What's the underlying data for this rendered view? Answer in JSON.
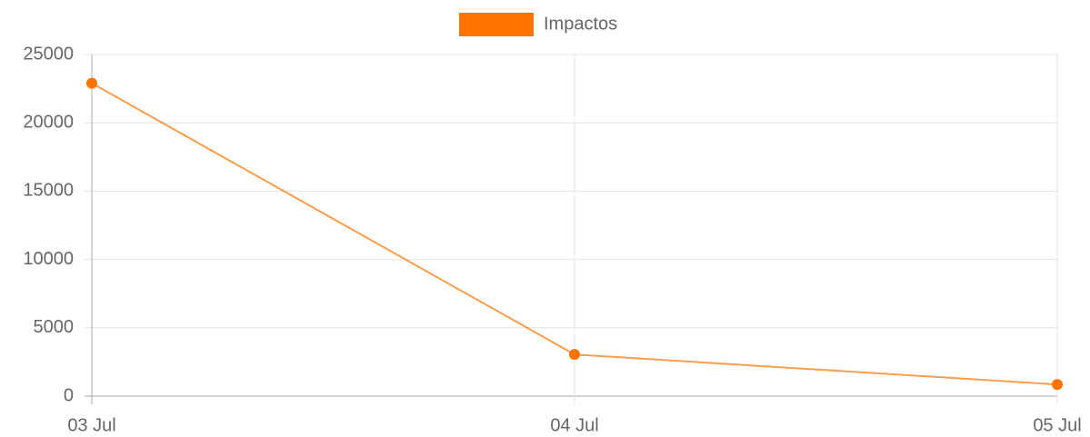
{
  "chart_data": {
    "type": "line",
    "categories": [
      "03 Jul",
      "04 Jul",
      "05 Jul"
    ],
    "series": [
      {
        "name": "Impactos",
        "color": "#ff7300",
        "values": [
          22900,
          3050,
          850
        ]
      }
    ],
    "ylim": [
      0,
      25000
    ],
    "yticks": [
      0,
      5000,
      10000,
      15000,
      20000,
      25000
    ],
    "grid": true,
    "legend": "top"
  }
}
